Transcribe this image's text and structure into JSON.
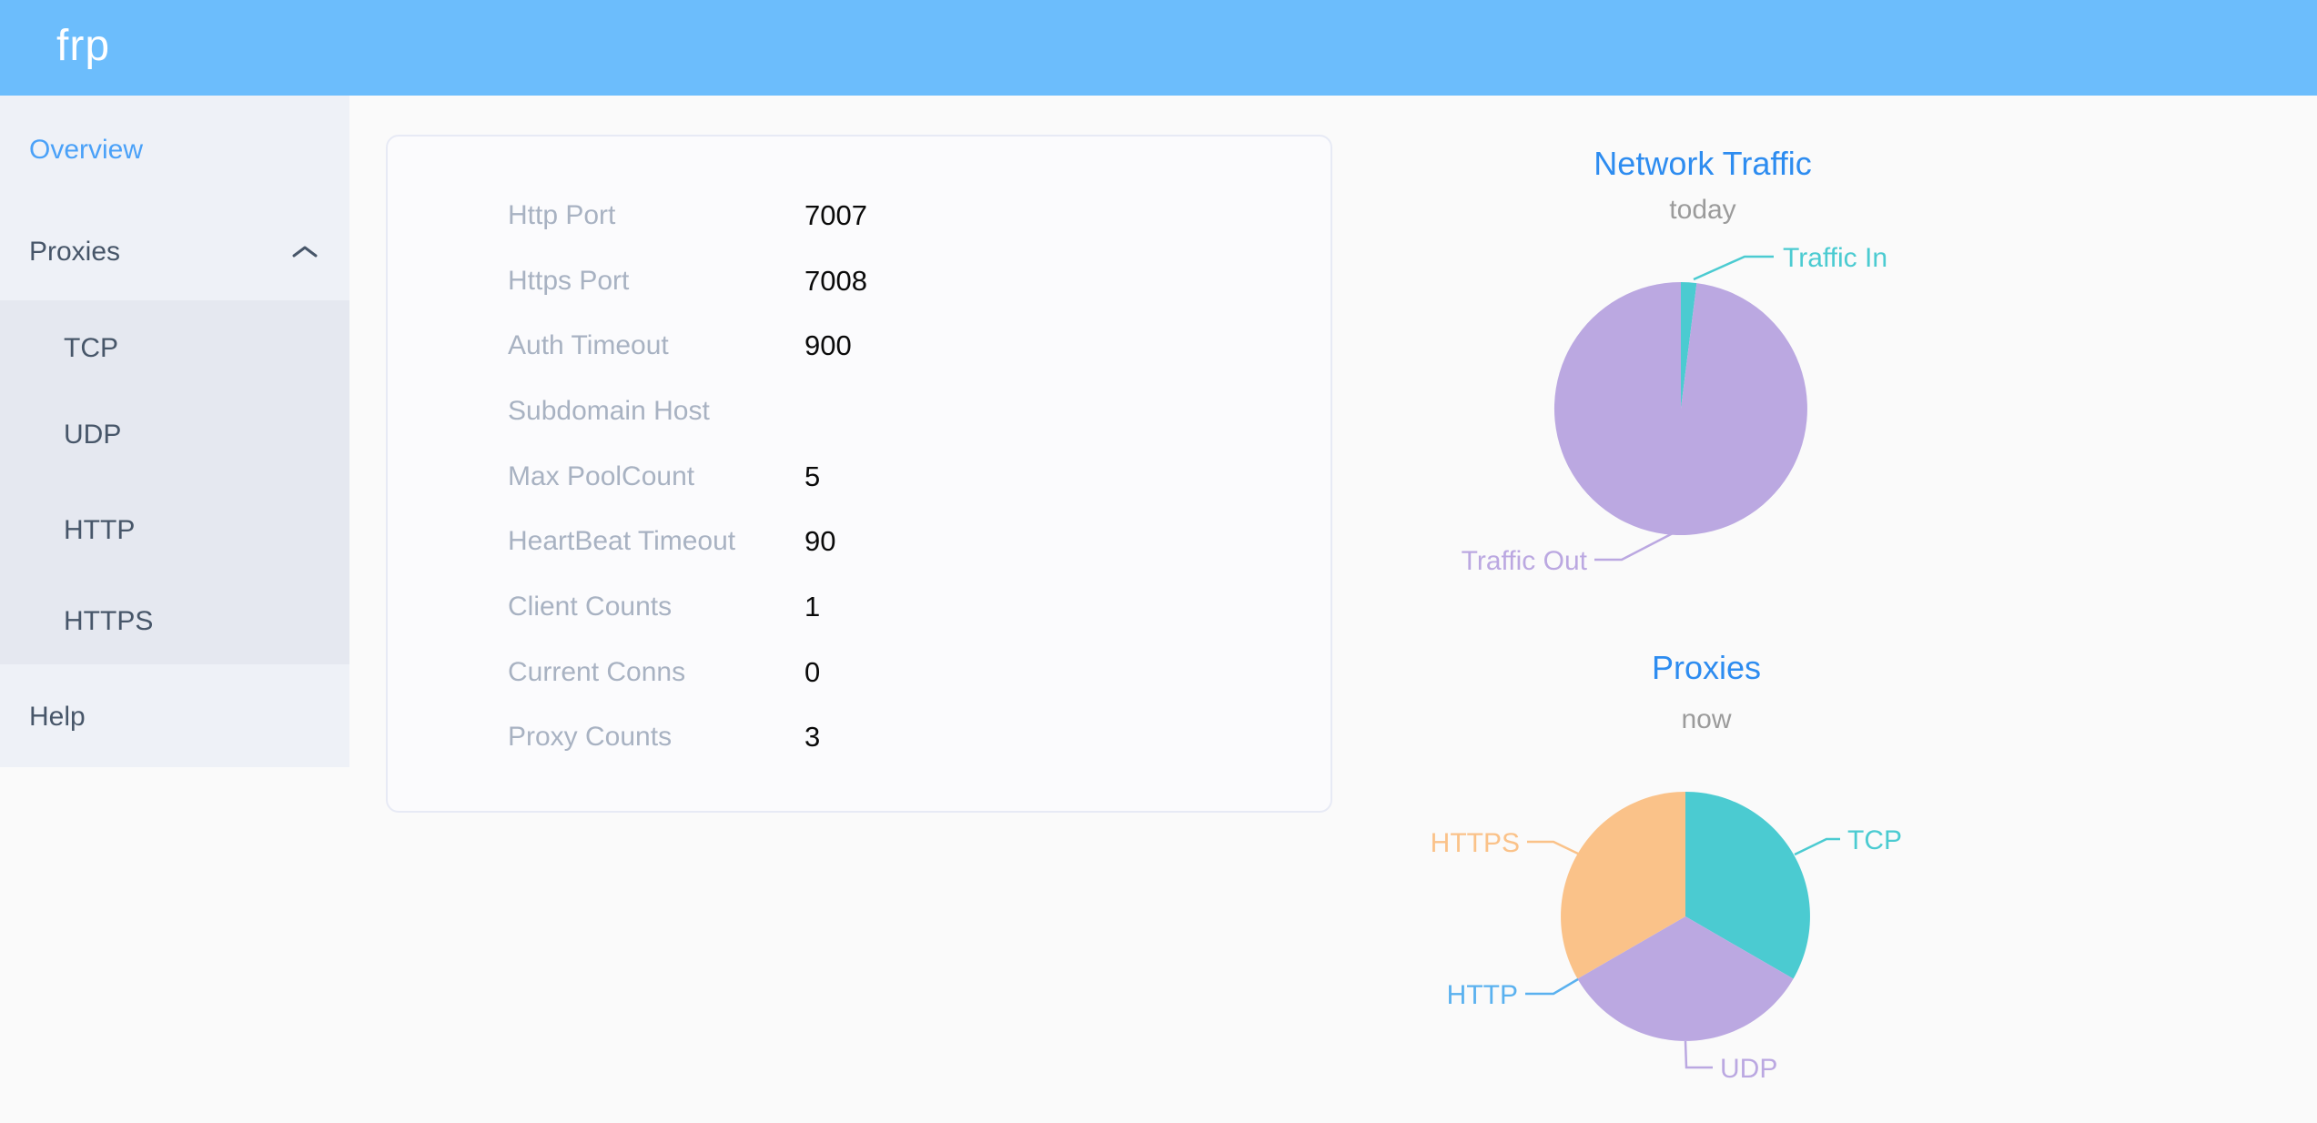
{
  "header": {
    "logo": "frp"
  },
  "sidebar": {
    "items": [
      {
        "label": "Overview",
        "active": true
      },
      {
        "label": "Proxies",
        "expanded": true
      }
    ],
    "subitems": [
      {
        "label": "TCP"
      },
      {
        "label": "UDP"
      },
      {
        "label": "HTTP"
      },
      {
        "label": "HTTPS"
      }
    ],
    "help_label": "Help"
  },
  "overview": {
    "rows": [
      {
        "label": "Http Port",
        "value": "7007"
      },
      {
        "label": "Https Port",
        "value": "7008"
      },
      {
        "label": "Auth Timeout",
        "value": "900"
      },
      {
        "label": "Subdomain Host",
        "value": ""
      },
      {
        "label": "Max PoolCount",
        "value": "5"
      },
      {
        "label": "HeartBeat Timeout",
        "value": "90"
      },
      {
        "label": "Client Counts",
        "value": "1"
      },
      {
        "label": "Current Conns",
        "value": "0"
      },
      {
        "label": "Proxy Counts",
        "value": "3"
      }
    ]
  },
  "chart_data": [
    {
      "type": "pie",
      "title": "Network Traffic",
      "subtitle": "today",
      "legend_position": "outside-callout-labels",
      "series": [
        {
          "name": "Traffic In",
          "percent": 2,
          "color": "#4bcbd1"
        },
        {
          "name": "Traffic Out",
          "percent": 98,
          "color": "#bba8e1"
        }
      ]
    },
    {
      "type": "pie",
      "title": "Proxies",
      "subtitle": "now",
      "legend_position": "outside-callout-labels",
      "series": [
        {
          "name": "TCP",
          "value": 1,
          "percent": 33.3,
          "color": "#4bcbd1"
        },
        {
          "name": "UDP",
          "value": 1,
          "percent": 33.3,
          "color": "#bba8e1"
        },
        {
          "name": "HTTP",
          "value": 0,
          "percent": 0,
          "color": "#5ab1ef"
        },
        {
          "name": "HTTPS",
          "value": 1,
          "percent": 33.3,
          "color": "#fac289"
        }
      ]
    }
  ],
  "colors": {
    "header_bg": "#6cbdfc",
    "sidebar_bg": "#eef1f7",
    "submenu_bg": "#e5e8f0",
    "sidebar_text": "#475669",
    "active_link": "#4aa1f8",
    "chart_title_blue": "#2d8cf0",
    "subtitle_gray": "#9b9b9b",
    "row_label_gray": "#a8b2c2"
  }
}
